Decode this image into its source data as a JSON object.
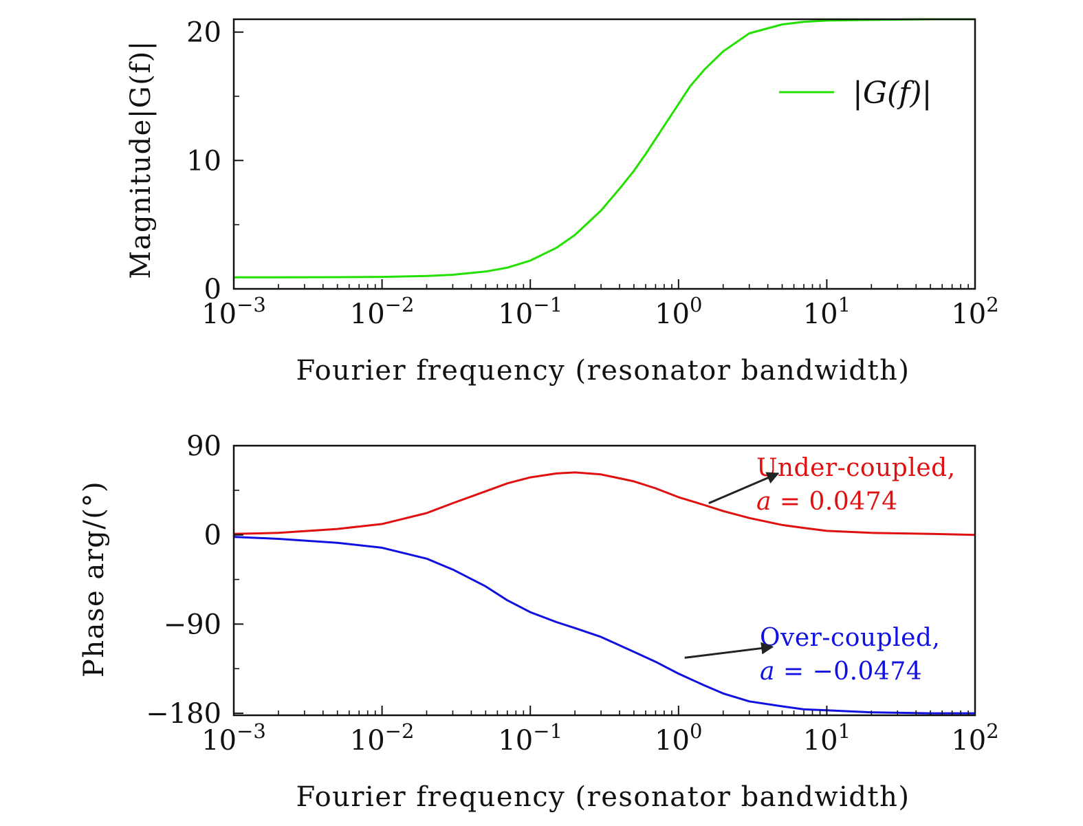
{
  "chart_data": [
    {
      "id": "magnitude",
      "type": "line",
      "title": "",
      "xlabel": "Fourier frequency (resonator bandwidth)",
      "ylabel": "Magnitude|G(f)|",
      "xscale": "log",
      "xlim": [
        0.001,
        100
      ],
      "ylim": [
        0,
        21
      ],
      "x_ticks": [
        {
          "value": 0.001,
          "base": "10",
          "exp": "−3"
        },
        {
          "value": 0.01,
          "base": "10",
          "exp": "−2"
        },
        {
          "value": 0.1,
          "base": "10",
          "exp": "−1"
        },
        {
          "value": 1,
          "base": "10",
          "exp": "0"
        },
        {
          "value": 10,
          "base": "10",
          "exp": "1"
        },
        {
          "value": 100,
          "base": "10",
          "exp": "2"
        }
      ],
      "y_ticks": [
        {
          "value": 0,
          "label": "0"
        },
        {
          "value": 10,
          "label": "10"
        },
        {
          "value": 20,
          "label": "20"
        }
      ],
      "y_minor_ticks": [
        5,
        15
      ],
      "grid": false,
      "legend": {
        "placement": "top-right",
        "entries": [
          {
            "label": "|G(f)|",
            "color": "#22e000"
          }
        ]
      },
      "series": [
        {
          "name": "|G(f)|",
          "color": "#22e000",
          "x": [
            0.001,
            0.002,
            0.005,
            0.01,
            0.02,
            0.03,
            0.05,
            0.07,
            0.1,
            0.15,
            0.2,
            0.3,
            0.4,
            0.5,
            0.6,
            0.8,
            1,
            1.2,
            1.5,
            2,
            3,
            5,
            7,
            10,
            20,
            50,
            100
          ],
          "y": [
            0.9,
            0.9,
            0.91,
            0.93,
            1.0,
            1.1,
            1.35,
            1.65,
            2.2,
            3.2,
            4.2,
            6.1,
            7.8,
            9.2,
            10.5,
            12.7,
            14.4,
            15.8,
            17.1,
            18.5,
            19.9,
            20.6,
            20.8,
            20.9,
            20.95,
            21.0,
            21.0
          ]
        }
      ]
    },
    {
      "id": "phase",
      "type": "line",
      "title": "",
      "xlabel": "Fourier frequency (resonator bandwidth)",
      "ylabel": "Phase arg/(°)",
      "xscale": "log",
      "xlim": [
        0.001,
        100
      ],
      "ylim": [
        -182,
        90
      ],
      "x_ticks": [
        {
          "value": 0.001,
          "base": "10",
          "exp": "−3"
        },
        {
          "value": 0.01,
          "base": "10",
          "exp": "−2"
        },
        {
          "value": 0.1,
          "base": "10",
          "exp": "−1"
        },
        {
          "value": 1,
          "base": "10",
          "exp": "0"
        },
        {
          "value": 10,
          "base": "10",
          "exp": "1"
        },
        {
          "value": 100,
          "base": "10",
          "exp": "2"
        }
      ],
      "y_ticks": [
        {
          "value": 90,
          "label": "90"
        },
        {
          "value": 0,
          "label": "0"
        },
        {
          "value": -90,
          "label": "−90"
        },
        {
          "value": -180,
          "label": "−180"
        }
      ],
      "y_minor_ticks": [
        45,
        -45,
        -135
      ],
      "grid": false,
      "series": [
        {
          "name": "Under-coupled",
          "color": "#e01010",
          "x": [
            0.001,
            0.002,
            0.005,
            0.01,
            0.02,
            0.03,
            0.05,
            0.07,
            0.1,
            0.15,
            0.2,
            0.3,
            0.5,
            0.7,
            1,
            1.5,
            2,
            3,
            5,
            7,
            10,
            20,
            50,
            100
          ],
          "y": [
            1,
            2,
            6,
            11,
            22,
            32,
            44,
            52,
            58,
            62,
            63,
            61,
            54,
            47,
            38,
            30,
            24,
            17,
            10,
            7,
            4,
            2,
            1,
            0
          ]
        },
        {
          "name": "Over-coupled",
          "color": "#1010e0",
          "x": [
            0.001,
            0.002,
            0.005,
            0.01,
            0.02,
            0.03,
            0.05,
            0.07,
            0.1,
            0.15,
            0.2,
            0.3,
            0.5,
            0.7,
            1,
            1.5,
            2,
            3,
            5,
            7,
            10,
            20,
            50,
            100
          ],
          "y": [
            -2,
            -4,
            -8,
            -13,
            -24,
            -35,
            -52,
            -66,
            -78,
            -88,
            -94,
            -103,
            -118,
            -128,
            -140,
            -152,
            -160,
            -168,
            -173,
            -176,
            -177,
            -179,
            -180,
            -180
          ]
        }
      ],
      "annotations": [
        {
          "series": "Under-coupled",
          "line1": "Under-coupled,",
          "var": "a",
          "eq": " = 0.0474",
          "color": "#e01010",
          "arrow_from": {
            "x": 1.6,
            "y": 32
          },
          "arrow_to": {
            "x": 4.7,
            "y": 62
          }
        },
        {
          "series": "Over-coupled",
          "line1": "Over-coupled,",
          "var": "a",
          "eq": " = −0.0474",
          "color": "#1010e0",
          "arrow_from": {
            "x": 1.1,
            "y": -124
          },
          "arrow_to": {
            "x": 4.3,
            "y": -113
          }
        }
      ]
    }
  ]
}
